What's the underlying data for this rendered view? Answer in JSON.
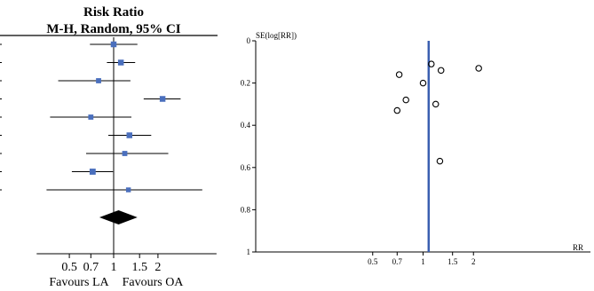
{
  "chart_data": [
    {
      "type": "forest",
      "title": "Risk Ratio",
      "subtitle": "M-H, Random, 95% CI",
      "x_scale": "log",
      "xlim": [
        0.3,
        5
      ],
      "ticks": [
        "0.5",
        "0.7",
        "1",
        "1.5",
        "2"
      ],
      "tick_values": [
        0.5,
        0.7,
        1,
        1.5,
        2
      ],
      "reference_line": 1,
      "favours_left": "Favours LA",
      "favours_right": "Favours OA",
      "colors": {
        "marker": "#4a6fbd",
        "line": "#000000",
        "diamond": "#000000"
      },
      "studies": [
        {
          "rr": 1.0,
          "lo": 0.69,
          "hi": 1.45,
          "weight": 1.0
        },
        {
          "rr": 1.12,
          "lo": 0.9,
          "hi": 1.4,
          "weight": 1.0
        },
        {
          "rr": 0.79,
          "lo": 0.42,
          "hi": 1.3,
          "weight": 0.8
        },
        {
          "rr": 2.15,
          "lo": 1.6,
          "hi": 2.85,
          "weight": 1.0
        },
        {
          "rr": 0.7,
          "lo": 0.37,
          "hi": 1.32,
          "weight": 0.8
        },
        {
          "rr": 1.28,
          "lo": 0.92,
          "hi": 1.8,
          "weight": 1.0
        },
        {
          "rr": 1.19,
          "lo": 0.65,
          "hi": 2.35,
          "weight": 0.8
        },
        {
          "rr": 0.72,
          "lo": 0.52,
          "hi": 0.99,
          "weight": 1.1
        },
        {
          "rr": 1.26,
          "lo": 0.35,
          "hi": 4.0,
          "weight": 0.7
        }
      ],
      "pooled": {
        "rr": 1.08,
        "lo": 0.8,
        "hi": 1.45
      }
    },
    {
      "type": "scatter",
      "subtype": "funnel",
      "ylabel": "SE(log[RR])",
      "xlabel": "RR",
      "x_scale": "log",
      "xlim": [
        0.1,
        10
      ],
      "ylim": [
        0,
        1
      ],
      "y_inverted": true,
      "xticks": [
        "0.5",
        "0.7",
        "1",
        "1.5",
        "2"
      ],
      "xtick_values": [
        0.5,
        0.7,
        1,
        1.5,
        2
      ],
      "yticks": [
        "0",
        "0.2",
        "0.4",
        "0.6",
        "0.8",
        "1"
      ],
      "ytick_values": [
        0,
        0.2,
        0.4,
        0.6,
        0.8,
        1
      ],
      "reference_line": 1.08,
      "colors": {
        "reference_line": "#3a5fb0",
        "point": "#000000"
      },
      "points": [
        {
          "x": 0.72,
          "y": 0.16
        },
        {
          "x": 1.12,
          "y": 0.11
        },
        {
          "x": 1.28,
          "y": 0.14
        },
        {
          "x": 2.15,
          "y": 0.13
        },
        {
          "x": 1.0,
          "y": 0.2
        },
        {
          "x": 1.19,
          "y": 0.3
        },
        {
          "x": 0.79,
          "y": 0.28
        },
        {
          "x": 0.7,
          "y": 0.33
        },
        {
          "x": 1.26,
          "y": 0.57
        }
      ]
    }
  ]
}
